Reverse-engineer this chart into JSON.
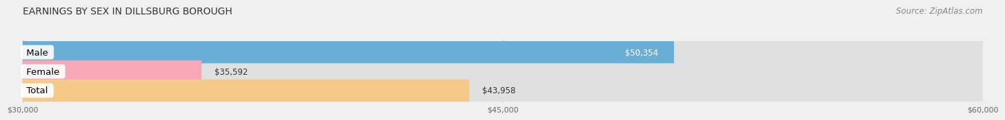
{
  "title": "EARNINGS BY SEX IN DILLSBURG BOROUGH",
  "source": "Source: ZipAtlas.com",
  "categories": [
    "Male",
    "Female",
    "Total"
  ],
  "values": [
    50354,
    35592,
    43958
  ],
  "bar_colors": [
    "#6aaed6",
    "#f4a8b8",
    "#f5c98a"
  ],
  "xmin": 30000,
  "xmax": 60000,
  "xticks": [
    30000,
    45000,
    60000
  ],
  "xtick_labels": [
    "$30,000",
    "$45,000",
    "$60,000"
  ],
  "bar_height": 0.58,
  "background_color": "#f0f0f0",
  "bar_bg_color": "#e0e0e0",
  "title_fontsize": 10,
  "source_fontsize": 8.5,
  "label_fontsize": 8.5,
  "category_fontsize": 9.5
}
